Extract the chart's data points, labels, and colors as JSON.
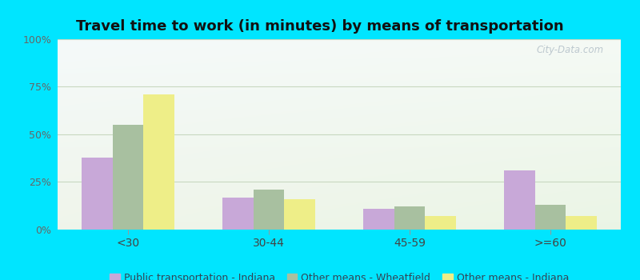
{
  "title": "Travel time to work (in minutes) by means of transportation",
  "categories": [
    "<30",
    "30-44",
    "45-59",
    ">=60"
  ],
  "series": [
    {
      "name": "Public transportation - Indiana",
      "color": "#c8a8d8",
      "values": [
        38,
        17,
        11,
        31
      ]
    },
    {
      "name": "Other means - Wheatfield",
      "color": "#a8c0a0",
      "values": [
        55,
        21,
        12,
        13
      ]
    },
    {
      "name": "Other means - Indiana",
      "color": "#eeee88",
      "values": [
        71,
        16,
        7,
        7
      ]
    }
  ],
  "ylim": [
    0,
    100
  ],
  "yticks": [
    0,
    25,
    50,
    75,
    100
  ],
  "ytick_labels": [
    "0%",
    "25%",
    "50%",
    "75%",
    "100%"
  ],
  "outer_bg": "#00e5ff",
  "title_fontsize": 13,
  "bar_width": 0.22,
  "grid_color": "#c8d8c0",
  "watermark": "City-Data.com",
  "legend_fontsize": 9,
  "legend_label_color": "#334455"
}
